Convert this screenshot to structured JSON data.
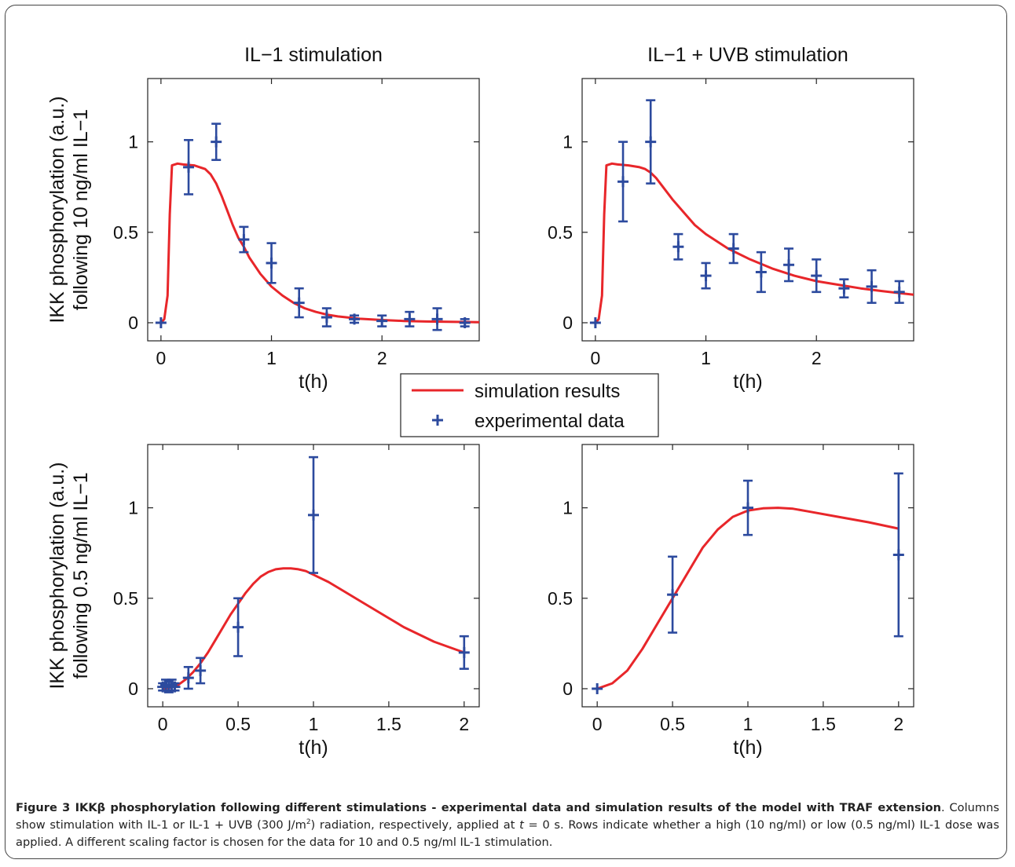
{
  "chart_data": [
    {
      "type": "line",
      "title": "IL−1 stimulation",
      "xlabel": "t(h)",
      "ylabel": "IKK phosphorylation (a.u.)",
      "ylabel2": "following 10 ng/ml IL−1",
      "xlim": [
        -0.12,
        2.88
      ],
      "ylim": [
        -0.1,
        1.35
      ],
      "xticks": [
        0,
        1,
        2
      ],
      "yticks": [
        0,
        0.5,
        1
      ],
      "grid": false,
      "series": [
        {
          "name": "simulation results",
          "kind": "line",
          "color": "#e8262a",
          "x": [
            0,
            0.03,
            0.06,
            0.08,
            0.1,
            0.15,
            0.2,
            0.3,
            0.4,
            0.45,
            0.5,
            0.55,
            0.6,
            0.65,
            0.7,
            0.75,
            0.8,
            0.9,
            1.0,
            1.1,
            1.2,
            1.3,
            1.4,
            1.5,
            1.6,
            1.8,
            2.0,
            2.2,
            2.4,
            2.6,
            2.88
          ],
          "y": [
            0,
            0.02,
            0.15,
            0.6,
            0.87,
            0.88,
            0.875,
            0.87,
            0.85,
            0.82,
            0.77,
            0.7,
            0.62,
            0.54,
            0.47,
            0.42,
            0.36,
            0.27,
            0.2,
            0.15,
            0.11,
            0.08,
            0.06,
            0.045,
            0.035,
            0.022,
            0.015,
            0.01,
            0.007,
            0.005,
            0.003
          ]
        },
        {
          "name": "experimental data",
          "kind": "errorbar",
          "color": "#2c4a9e",
          "x": [
            0,
            0.25,
            0.5,
            0.75,
            1.0,
            1.25,
            1.5,
            1.75,
            2.0,
            2.25,
            2.5,
            2.75
          ],
          "y": [
            0,
            0.86,
            1.0,
            0.46,
            0.33,
            0.11,
            0.03,
            0.02,
            0.01,
            0.02,
            0.02,
            0.0
          ],
          "err": [
            0,
            0.15,
            0.1,
            0.07,
            0.11,
            0.08,
            0.05,
            0.02,
            0.03,
            0.04,
            0.06,
            0.02
          ]
        }
      ]
    },
    {
      "type": "line",
      "title": "IL−1 + UVB stimulation",
      "xlabel": "t(h)",
      "ylabel": "",
      "ylabel2": "",
      "xlim": [
        -0.12,
        2.88
      ],
      "ylim": [
        -0.1,
        1.35
      ],
      "xticks": [
        0,
        1,
        2
      ],
      "yticks": [
        0,
        0.5,
        1
      ],
      "grid": false,
      "series": [
        {
          "name": "simulation results",
          "kind": "line",
          "color": "#e8262a",
          "x": [
            0,
            0.03,
            0.06,
            0.08,
            0.1,
            0.15,
            0.2,
            0.3,
            0.4,
            0.45,
            0.5,
            0.55,
            0.6,
            0.7,
            0.8,
            0.9,
            1.0,
            1.2,
            1.4,
            1.6,
            1.8,
            2.0,
            2.2,
            2.4,
            2.6,
            2.88
          ],
          "y": [
            0,
            0.02,
            0.15,
            0.6,
            0.87,
            0.88,
            0.875,
            0.87,
            0.86,
            0.85,
            0.83,
            0.8,
            0.76,
            0.68,
            0.61,
            0.54,
            0.49,
            0.41,
            0.35,
            0.3,
            0.26,
            0.23,
            0.21,
            0.19,
            0.175,
            0.155
          ]
        },
        {
          "name": "experimental data",
          "kind": "errorbar",
          "color": "#2c4a9e",
          "x": [
            0,
            0.25,
            0.5,
            0.75,
            1.0,
            1.25,
            1.5,
            1.75,
            2.0,
            2.25,
            2.5,
            2.75
          ],
          "y": [
            0,
            0.78,
            1.0,
            0.42,
            0.26,
            0.41,
            0.28,
            0.32,
            0.26,
            0.19,
            0.2,
            0.17
          ],
          "err": [
            0,
            0.22,
            0.23,
            0.07,
            0.07,
            0.08,
            0.11,
            0.09,
            0.09,
            0.05,
            0.09,
            0.06
          ]
        }
      ]
    },
    {
      "type": "line",
      "title": "",
      "xlabel": "t(h)",
      "ylabel": "IKK phosphorylation (a.u.)",
      "ylabel2": "following 0.5 ng/ml IL−1",
      "xlim": [
        -0.1,
        2.1
      ],
      "ylim": [
        -0.1,
        1.35
      ],
      "xticks": [
        0,
        0.5,
        1,
        1.5,
        2
      ],
      "yticks": [
        0,
        0.5,
        1
      ],
      "grid": false,
      "series": [
        {
          "name": "simulation results",
          "kind": "line",
          "color": "#e8262a",
          "x": [
            0,
            0.05,
            0.1,
            0.15,
            0.2,
            0.25,
            0.3,
            0.35,
            0.4,
            0.45,
            0.5,
            0.55,
            0.6,
            0.65,
            0.7,
            0.75,
            0.8,
            0.85,
            0.9,
            0.95,
            1.0,
            1.1,
            1.2,
            1.3,
            1.4,
            1.5,
            1.6,
            1.7,
            1.8,
            1.9,
            2.0
          ],
          "y": [
            0,
            0.005,
            0.02,
            0.05,
            0.09,
            0.14,
            0.2,
            0.27,
            0.34,
            0.41,
            0.47,
            0.53,
            0.58,
            0.62,
            0.645,
            0.66,
            0.665,
            0.665,
            0.66,
            0.65,
            0.63,
            0.59,
            0.54,
            0.49,
            0.44,
            0.39,
            0.34,
            0.3,
            0.26,
            0.23,
            0.2
          ]
        },
        {
          "name": "experimental data",
          "kind": "errorbar",
          "color": "#2c4a9e",
          "x": [
            0,
            0.02,
            0.04,
            0.06,
            0.08,
            0.17,
            0.25,
            0.5,
            1.0,
            2.0
          ],
          "y": [
            0.01,
            0.02,
            0.01,
            0.02,
            0.01,
            0.06,
            0.1,
            0.34,
            0.96,
            0.2
          ],
          "err": [
            0.02,
            0.03,
            0.03,
            0.03,
            0.02,
            0.06,
            0.07,
            0.16,
            0.32,
            0.09
          ]
        }
      ]
    },
    {
      "type": "line",
      "title": "",
      "xlabel": "t(h)",
      "ylabel": "",
      "ylabel2": "",
      "xlim": [
        -0.1,
        2.1
      ],
      "ylim": [
        -0.1,
        1.35
      ],
      "xticks": [
        0,
        0.5,
        1,
        1.5,
        2
      ],
      "yticks": [
        0,
        0.5,
        1
      ],
      "grid": false,
      "series": [
        {
          "name": "simulation results",
          "kind": "line",
          "color": "#e8262a",
          "x": [
            0,
            0.1,
            0.2,
            0.3,
            0.4,
            0.5,
            0.6,
            0.7,
            0.8,
            0.9,
            1.0,
            1.1,
            1.2,
            1.3,
            1.4,
            1.6,
            1.8,
            2.0
          ],
          "y": [
            0,
            0.03,
            0.1,
            0.22,
            0.36,
            0.5,
            0.64,
            0.78,
            0.88,
            0.95,
            0.985,
            0.997,
            1.0,
            0.995,
            0.98,
            0.95,
            0.92,
            0.885
          ]
        },
        {
          "name": "experimental data",
          "kind": "errorbar",
          "color": "#2c4a9e",
          "x": [
            0,
            0.5,
            1.0,
            2.0
          ],
          "y": [
            0,
            0.52,
            1.0,
            0.74
          ],
          "err": [
            0,
            0.21,
            0.15,
            0.45
          ]
        }
      ]
    }
  ],
  "legend": {
    "entries": [
      {
        "label": "simulation results",
        "marker": "line",
        "color": "#e8262a"
      },
      {
        "label": "experimental data",
        "marker": "plus",
        "color": "#2c4a9e"
      }
    ]
  },
  "caption": {
    "lead": "Figure 3 IKKβ phosphorylation following different stimulations - experimental data and simulation results of the model with TRAF extension",
    "body_pre": ". Columns show stimulation with IL-1 or IL-1 + UVB (300 J/m",
    "body_sup": "2",
    "body_mid": ") radiation, respectively, applied at ",
    "body_var": "t",
    "body_post": " = 0 s. Rows indicate whether a high (10 ng/ml) or low (0.5 ng/ml) IL-1 dose was applied. A different scaling factor is chosen for the data for 10 and 0.5 ng/ml IL-1 stimulation."
  }
}
